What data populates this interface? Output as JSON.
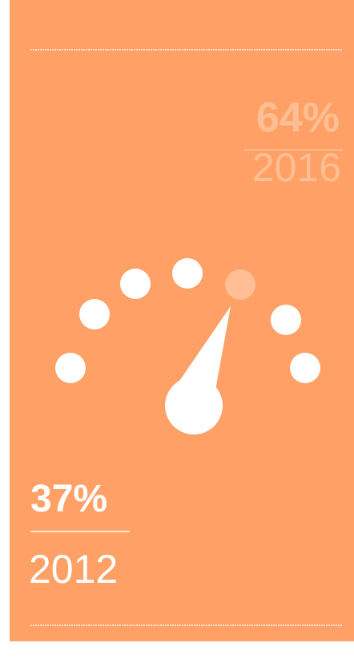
{
  "top": {
    "value": "64%",
    "year": "2016"
  },
  "bottom": {
    "value": "37%",
    "year": "2012"
  }
}
